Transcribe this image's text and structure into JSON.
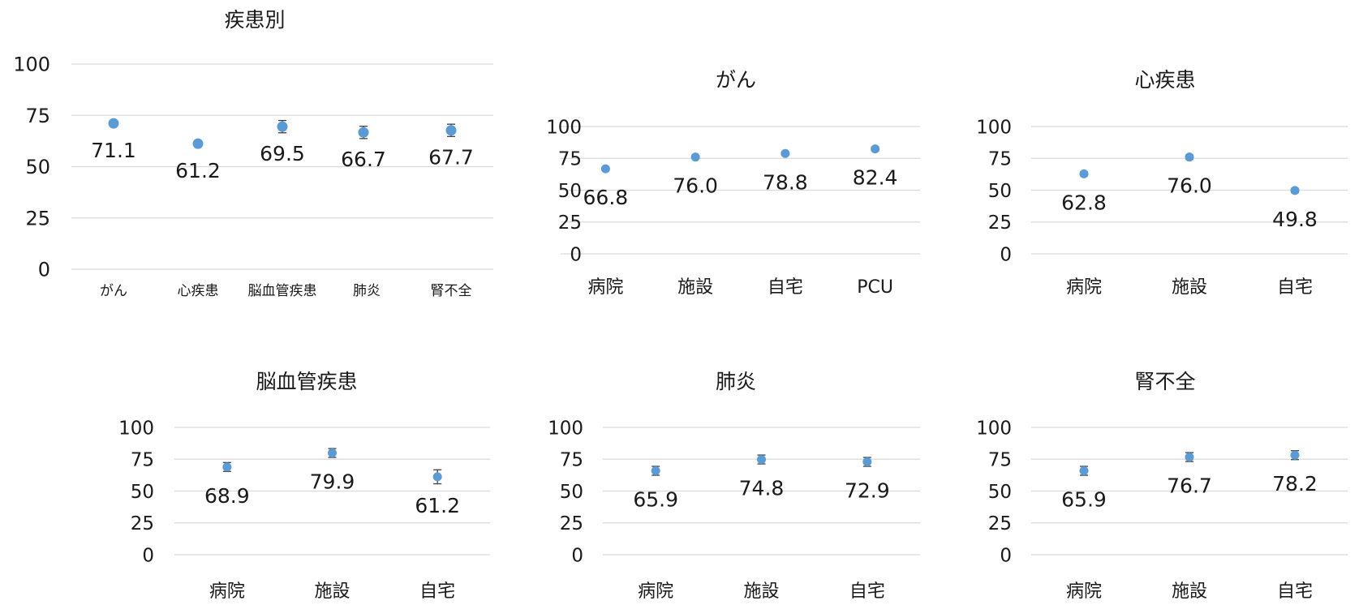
{
  "chart_data": [
    {
      "type": "scatter",
      "title": "疾患別",
      "categories": [
        "がん",
        "心疾患",
        "脳血管疾患",
        "肺炎",
        "腎不全"
      ],
      "values": [
        71.1,
        61.2,
        69.5,
        66.7,
        67.7
      ],
      "value_labels": [
        "71.1",
        "61.2",
        "69.5",
        "66.7",
        "67.7"
      ],
      "error": [
        1.0,
        1.5,
        3.0,
        3.0,
        3.0
      ],
      "ylim": [
        0,
        100
      ],
      "yticks": [
        "0",
        "25",
        "50",
        "75",
        "100"
      ],
      "grid": true,
      "marker_color": "#5b9bd5",
      "error_color": "#404040"
    },
    {
      "type": "scatter",
      "title": "がん",
      "categories": [
        "病院",
        "施設",
        "自宅",
        "PCU"
      ],
      "values": [
        66.8,
        76.0,
        78.8,
        82.4
      ],
      "value_labels": [
        "66.8",
        "76.0",
        "78.8",
        "82.4"
      ],
      "error": [
        1.0,
        1.0,
        1.0,
        1.5
      ],
      "ylim": [
        0,
        100
      ],
      "yticks": [
        "0",
        "25",
        "50",
        "75",
        "100"
      ],
      "grid": true,
      "marker_color": "#5b9bd5",
      "error_color": "#404040"
    },
    {
      "type": "scatter",
      "title": "心疾患",
      "categories": [
        "病院",
        "施設",
        "自宅"
      ],
      "values": [
        62.8,
        76.0,
        49.8
      ],
      "value_labels": [
        "62.8",
        "76.0",
        "49.8"
      ],
      "error": [
        1.5,
        1.5,
        1.5
      ],
      "ylim": [
        0,
        100
      ],
      "yticks": [
        "0",
        "25",
        "50",
        "75",
        "100"
      ],
      "grid": true,
      "marker_color": "#5b9bd5",
      "error_color": "#404040"
    },
    {
      "type": "scatter",
      "title": "脳血管疾患",
      "categories": [
        "病院",
        "施設",
        "自宅"
      ],
      "values": [
        68.9,
        79.9,
        61.2
      ],
      "value_labels": [
        "68.9",
        "79.9",
        "61.2"
      ],
      "error": [
        3.5,
        3.5,
        5.5
      ],
      "ylim": [
        0,
        100
      ],
      "yticks": [
        "0",
        "25",
        "50",
        "75",
        "100"
      ],
      "grid": true,
      "marker_color": "#5b9bd5",
      "error_color": "#404040"
    },
    {
      "type": "scatter",
      "title": "肺炎",
      "categories": [
        "病院",
        "施設",
        "自宅"
      ],
      "values": [
        65.9,
        74.8,
        72.9
      ],
      "value_labels": [
        "65.9",
        "74.8",
        "72.9"
      ],
      "error": [
        3.5,
        3.5,
        3.5
      ],
      "ylim": [
        0,
        100
      ],
      "yticks": [
        "0",
        "25",
        "50",
        "75",
        "100"
      ],
      "grid": true,
      "marker_color": "#5b9bd5",
      "error_color": "#404040"
    },
    {
      "type": "scatter",
      "title": "腎不全",
      "categories": [
        "病院",
        "施設",
        "自宅"
      ],
      "values": [
        65.9,
        76.7,
        78.2
      ],
      "value_labels": [
        "65.9",
        "76.7",
        "78.2"
      ],
      "error": [
        3.5,
        3.5,
        3.5
      ],
      "ylim": [
        0,
        100
      ],
      "yticks": [
        "0",
        "25",
        "50",
        "75",
        "100"
      ],
      "grid": true,
      "marker_color": "#5b9bd5",
      "error_color": "#404040"
    }
  ]
}
